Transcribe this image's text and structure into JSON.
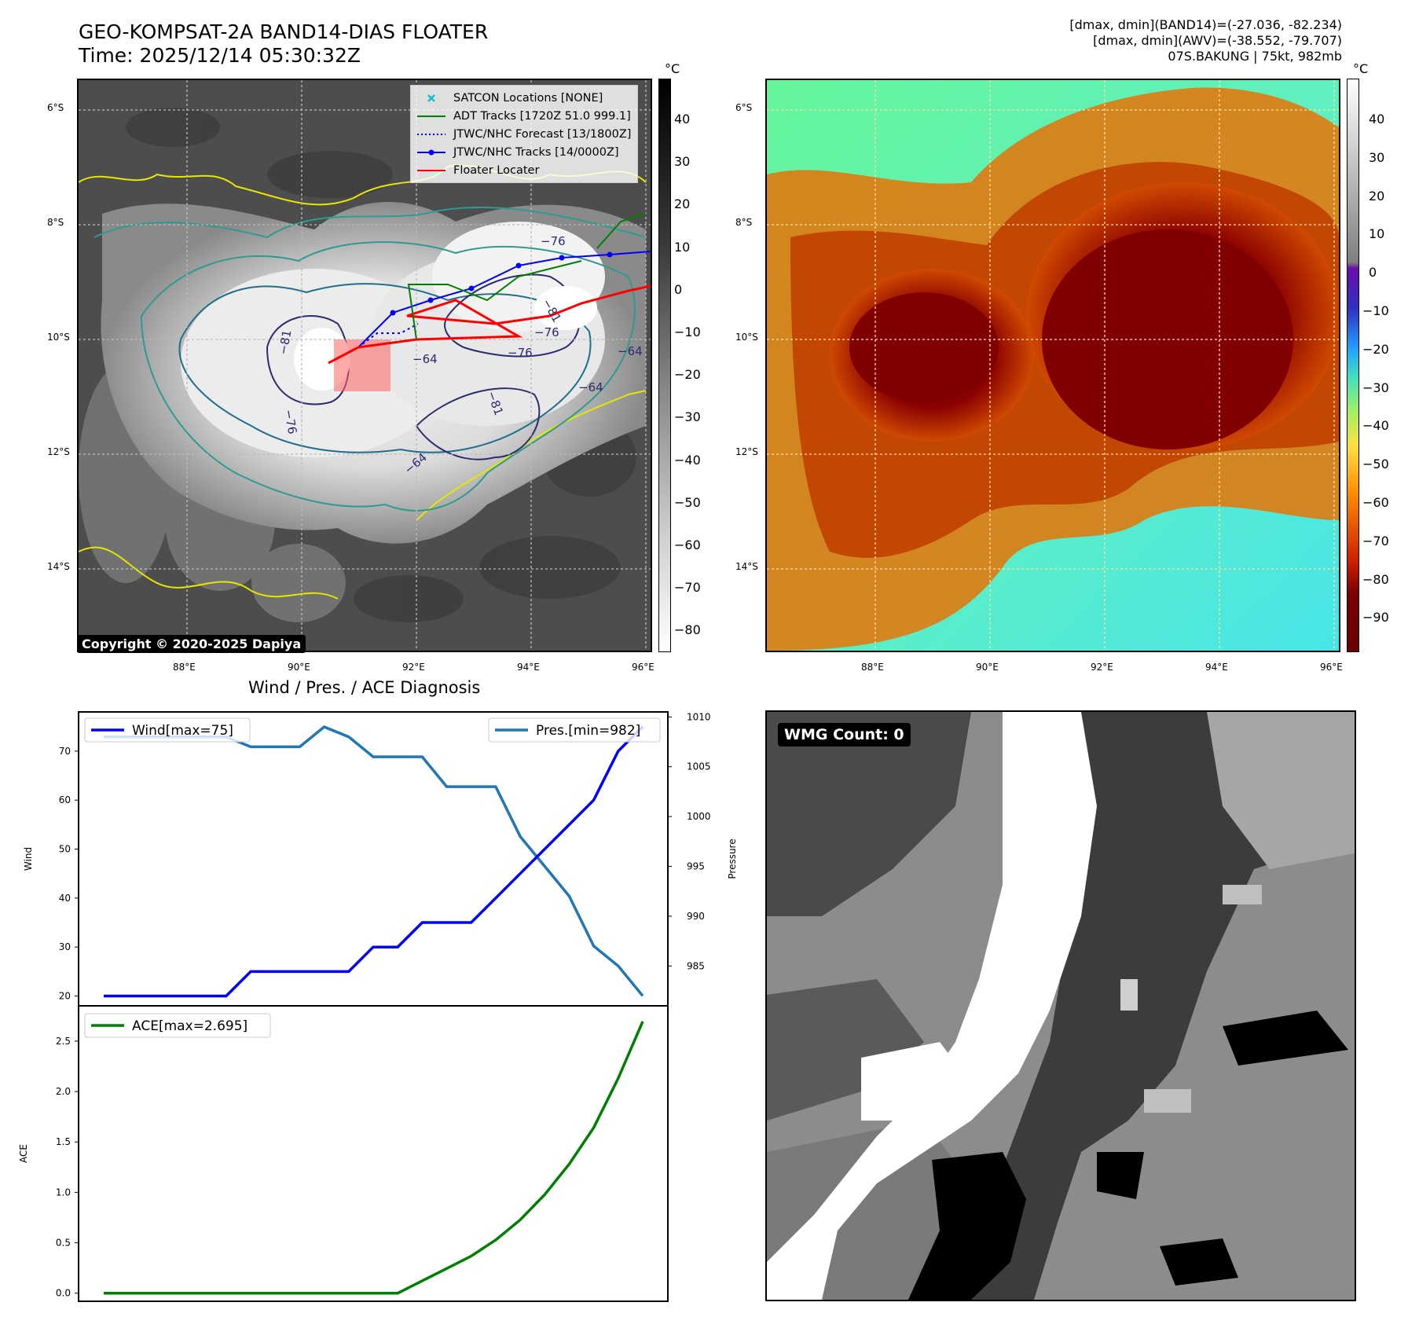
{
  "header": {
    "title_line1": "GEO-KOMPSAT-2A BAND14-DIAS FLOATER",
    "title_line2": "Time: 2025/12/14 05:30:32Z",
    "stat_line1": "[dmax, dmin](BAND14)=(-27.036, -82.234)",
    "stat_line2": "[dmax, dmin](AWV)=(-38.552, -79.707)",
    "stat_line3": "07S.BAKUNG | 75kt, 982mb"
  },
  "map_axes": {
    "lat_labels": [
      "6°S",
      "8°S",
      "10°S",
      "12°S",
      "14°S"
    ],
    "lon_labels": [
      "88°E",
      "90°E",
      "92°E",
      "94°E",
      "96°E"
    ]
  },
  "ir_panel": {
    "colorbar_unit": "°C",
    "colorbar_ticks": [
      "40",
      "30",
      "20",
      "10",
      "0",
      "−10",
      "−20",
      "−30",
      "−40",
      "−50",
      "−60",
      "−70",
      "−80"
    ],
    "contour_labels": [
      "−76",
      "−76",
      "−76",
      "−76",
      "−64",
      "−64",
      "−64",
      "−81",
      "−81",
      "−81",
      "−64"
    ],
    "copyright": "Copyright © 2020-2025 Dapiya",
    "legend": [
      {
        "label": "SATCON Locations [NONE]",
        "color": "#17becf",
        "style": "x"
      },
      {
        "label": "ADT Tracks [1720Z 51.0 999.1]",
        "color": "#008000",
        "style": "solid"
      },
      {
        "label": "JTWC/NHC Forecast [13/1800Z]",
        "color": "#0000ff",
        "style": "dotted"
      },
      {
        "label": "JTWC/NHC Tracks [14/0000Z]",
        "color": "#0000ff",
        "style": "dot-line"
      },
      {
        "label": "Floater Locater",
        "color": "#ff0000",
        "style": "solid"
      }
    ]
  },
  "wv_panel": {
    "colorbar_unit": "°C",
    "colorbar_ticks": [
      "40",
      "30",
      "20",
      "10",
      "0",
      "−10",
      "−20",
      "−30",
      "−40",
      "−50",
      "−60",
      "−70",
      "−80",
      "−90"
    ]
  },
  "diagnosis": {
    "title": "Wind / Pres. / ACE Diagnosis",
    "wmg_label": "WMG Count: 0"
  },
  "chart_data": [
    {
      "type": "line",
      "ylabel": "Wind",
      "ylabel2": "Pressure",
      "ylim": [
        18,
        78
      ],
      "ylim2": [
        981,
        1010.5
      ],
      "yticks": [
        "20",
        "30",
        "40",
        "50",
        "60",
        "70"
      ],
      "yticks2": [
        "985",
        "990",
        "995",
        "1000",
        "1005",
        "1010"
      ],
      "series": [
        {
          "name": "Wind[max=75]",
          "color": "#0000ff",
          "values": [
            20,
            20,
            20,
            20,
            20,
            20,
            25,
            25,
            25,
            25,
            25,
            30,
            30,
            35,
            35,
            35,
            40,
            45,
            50,
            55,
            60,
            70,
            75
          ]
        },
        {
          "name": "Pres.[min=982]",
          "color": "#1f77b4",
          "values": [
            1008,
            1008,
            1008,
            1008,
            1008,
            1008,
            1007,
            1007,
            1007,
            1009,
            1008,
            1006,
            1006,
            1006,
            1003,
            1003,
            1003,
            998,
            995,
            992,
            987,
            985,
            982
          ]
        }
      ]
    },
    {
      "type": "line",
      "ylabel": "ACE",
      "ylim": [
        -0.08,
        2.85
      ],
      "yticks": [
        "0.0",
        "0.5",
        "1.0",
        "1.5",
        "2.0",
        "2.5"
      ],
      "series": [
        {
          "name": "ACE[max=2.695]",
          "color": "#008000",
          "values": [
            0,
            0,
            0,
            0,
            0,
            0,
            0,
            0,
            0,
            0,
            0,
            0,
            0,
            0.123,
            0.245,
            0.368,
            0.528,
            0.728,
            0.978,
            1.281,
            1.641,
            2.131,
            2.695
          ]
        }
      ]
    }
  ]
}
